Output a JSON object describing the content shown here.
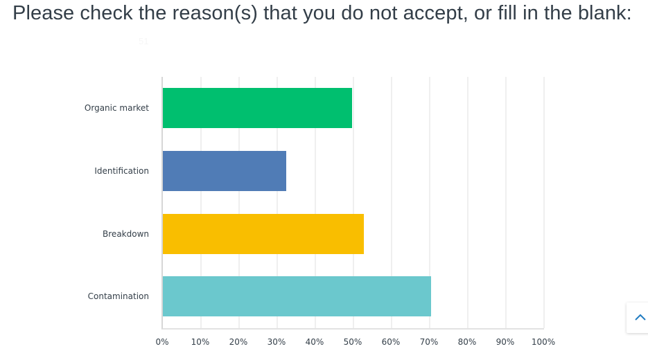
{
  "header": {
    "title": "Please check the reason(s) that you do not accept, or fill in the blank:",
    "subtitle_faded": "51"
  },
  "scroll_top_button": {
    "icon": "chevron-up-icon",
    "color": "#1f7bc1"
  },
  "chart_data": {
    "type": "bar",
    "orientation": "horizontal",
    "title": "Please check the reason(s) that you do not accept, or fill in the blank:",
    "xlabel": "",
    "ylabel": "",
    "categories": [
      "Organic market",
      "Identification",
      "Breakdown",
      "Contamination"
    ],
    "values": [
      49.7,
      32.4,
      52.7,
      70.4
    ],
    "unit": "%",
    "colors": [
      "#00bf6f",
      "#507cb6",
      "#f9be00",
      "#6bc8cd"
    ],
    "xlim": [
      0,
      100
    ],
    "x_ticks": [
      "0%",
      "10%",
      "20%",
      "30%",
      "40%",
      "50%",
      "60%",
      "70%",
      "80%",
      "90%",
      "100%"
    ],
    "grid": true,
    "legend": "none"
  }
}
